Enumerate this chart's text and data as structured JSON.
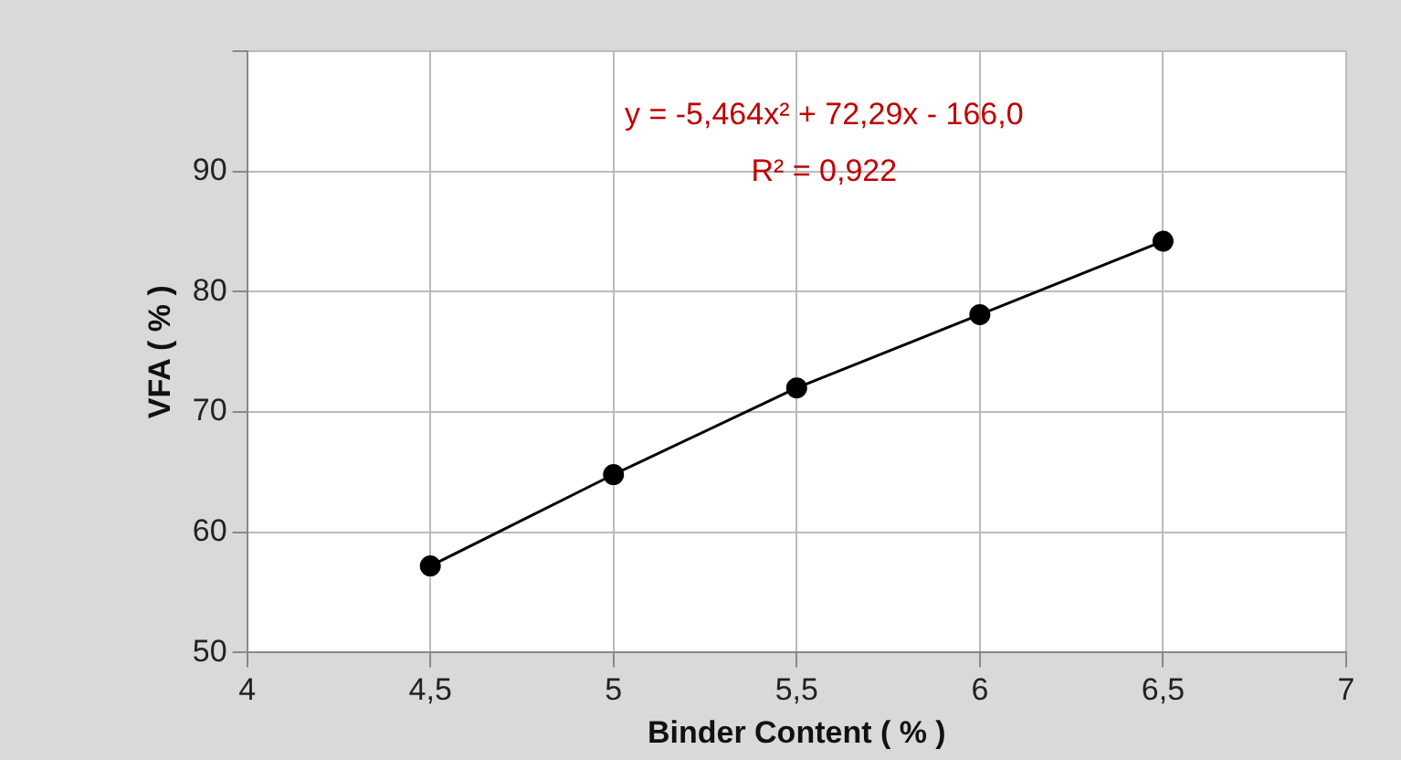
{
  "chart_data": {
    "type": "line",
    "xlabel": "Binder Content ( % )",
    "ylabel": "VFA ( % )",
    "x": [
      4.5,
      5,
      5.5,
      6,
      6.5
    ],
    "series": [
      {
        "color": "#000000",
        "values": [
          57.2,
          64.8,
          72.0,
          78.1,
          84.2
        ]
      }
    ],
    "xlim": [
      4,
      7
    ],
    "xticks": [
      4,
      {
        "value": 4.5,
        "label": "4,5"
      },
      5,
      {
        "value": 5.5,
        "label": "5,5"
      },
      6,
      {
        "value": 6.5,
        "label": "6,5"
      },
      7
    ],
    "ylim": [
      50,
      100
    ],
    "yticks": [
      50,
      60,
      70,
      80,
      90,
      {
        "value": 100,
        "label": null
      }
    ],
    "annotations": [
      "y = -5,464x² + 72,29x - 166,0",
      "R² = 0,922"
    ],
    "grid": true,
    "marker": "circle",
    "line_style": "solid",
    "legend": false
  }
}
